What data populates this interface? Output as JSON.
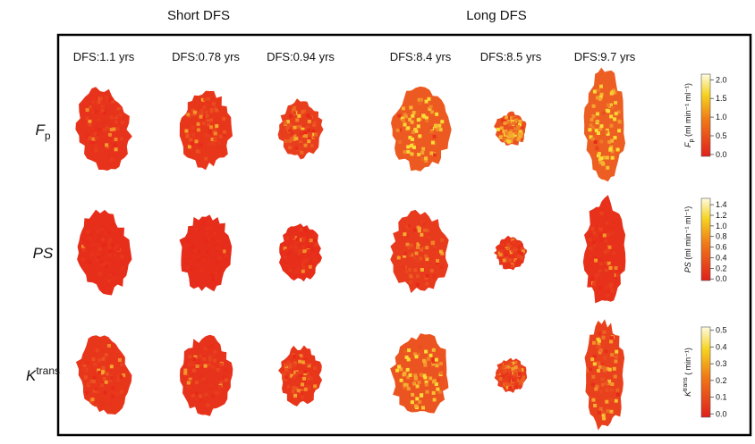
{
  "groups": [
    "Short DFS",
    "Long DFS"
  ],
  "columns": [
    "DFS:1.1 yrs",
    "DFS:0.78 yrs",
    "DFS:0.94 yrs",
    "DFS:8.4 yrs",
    "DFS:8.5 yrs",
    "DFS:9.7 yrs"
  ],
  "rows": [
    {
      "symbol": "F",
      "sub": "p",
      "colorbar": {
        "symbol": "F",
        "sub": "p",
        "unit": " (ml min⁻¹ ml⁻¹)",
        "ylim": [
          -0.05,
          2.15
        ],
        "yticks": [
          {
            "value": 0,
            "label": "0.0"
          },
          0.5,
          {
            "value": 1,
            "label": "1.0"
          },
          1.5,
          {
            "value": 2,
            "label": "2.0"
          }
        ]
      }
    },
    {
      "symbol": "PS",
      "colorbar": {
        "symbol": "PS",
        "unit": " (ml min⁻¹ ml⁻¹)",
        "ylim": [
          -0.03,
          1.52
        ],
        "yticks": [
          {
            "value": 0,
            "label": "0.0"
          },
          0.2,
          0.4,
          0.6,
          0.8,
          {
            "value": 1,
            "label": "1.0"
          },
          1.2,
          1.4
        ]
      }
    },
    {
      "symbol": "K",
      "sup": "trans",
      "colorbar": {
        "symbol": "K",
        "sup": "trans",
        "unit": " ( min⁻¹)",
        "ylim": [
          -0.02,
          0.52
        ],
        "yticks": [
          {
            "value": 0,
            "label": "0.0"
          },
          0.1,
          0.2,
          0.3,
          0.4,
          0.5
        ]
      }
    }
  ]
}
